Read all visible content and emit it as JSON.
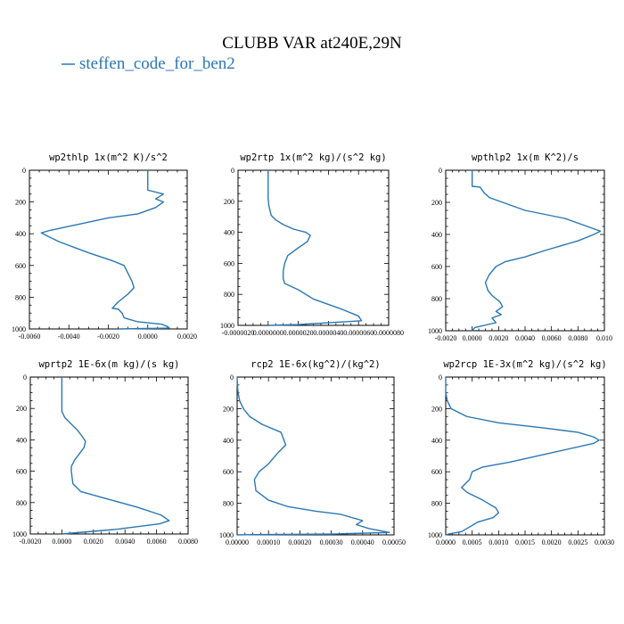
{
  "figure": {
    "title": "CLUBB VAR at240E,29N",
    "legend_label": "steffen_code_for_ben2",
    "line_color": "#2a77b4"
  },
  "chart_data": [
    {
      "type": "line",
      "title": "wp2thlp  1x(m^2 K)/s^2",
      "xlim": [
        -0.006,
        0.002
      ],
      "ylim": [
        0,
        1000
      ],
      "y_inverted": true,
      "xticks": [
        "-0.0060",
        "-0.0040",
        "-0.0020",
        "0.0000",
        "0.0020"
      ],
      "yticks": [
        "0",
        "200",
        "400",
        "600",
        "800",
        "1000"
      ],
      "series": [
        {
          "x": [
            0.0,
            0.0,
            0.0,
            0.0,
            0.0008,
            0.0004,
            0.0008,
            0.0004,
            -0.0005,
            -0.002,
            -0.0035,
            -0.005,
            -0.0054,
            -0.005,
            -0.0045,
            -0.003,
            -0.0018,
            -0.0012,
            -0.001,
            -0.0008,
            -0.0007,
            -0.001,
            -0.0015,
            -0.0018,
            -0.0015,
            -0.0013,
            -0.0012,
            -0.0005,
            0.0007,
            0.001,
            0.0011,
            -0.0015
          ],
          "y": [
            0,
            50,
            100,
            125,
            150,
            180,
            200,
            235,
            275,
            300,
            340,
            380,
            395,
            420,
            450,
            520,
            570,
            600,
            650,
            700,
            740,
            780,
            830,
            870,
            875,
            900,
            930,
            955,
            970,
            985,
            995,
            1000
          ]
        }
      ]
    },
    {
      "type": "line",
      "title": "wp2rtp  1x(m^2 kg)/(s^2 kg)",
      "xlim": [
        -2e-06,
        8e-06
      ],
      "ylim": [
        0,
        1000
      ],
      "y_inverted": true,
      "xticks": [
        "-0.0000020",
        "0.0000000",
        "0.0000020",
        "0.0000040",
        "0.0000060",
        "0.0000080"
      ],
      "yticks": [
        "0",
        "200",
        "400",
        "600",
        "800",
        "1000"
      ],
      "series": [
        {
          "x": [
            0.0,
            0.0,
            0.0,
            5e-08,
            2e-07,
            5e-07,
            1e-06,
            1.7e-06,
            2.5e-06,
            2.8e-06,
            2.6e-06,
            2e-06,
            1.3e-06,
            1.1e-06,
            1e-06,
            1e-06,
            1.1e-06,
            2e-06,
            3e-06,
            5e-06,
            6e-06,
            6.2e-06,
            2e-06,
            0.0
          ],
          "y": [
            0,
            100,
            180,
            230,
            290,
            320,
            350,
            380,
            400,
            420,
            460,
            500,
            550,
            600,
            650,
            700,
            730,
            770,
            830,
            900,
            940,
            970,
            995,
            1000
          ]
        }
      ]
    },
    {
      "type": "line",
      "title": "wpthlp2  1x(m K^2)/s",
      "xlim": [
        -0.002,
        0.01
      ],
      "ylim": [
        0,
        1000
      ],
      "y_inverted": true,
      "xticks": [
        "-0.0020",
        "0.0000",
        "0.0020",
        "0.0040",
        "0.0060",
        "0.0080",
        "0.010"
      ],
      "yticks": [
        "0",
        "200",
        "400",
        "600",
        "800",
        "1000"
      ],
      "series": [
        {
          "x": [
            0.0,
            0.0,
            0.0,
            0.0006,
            0.0009,
            0.0013,
            0.004,
            0.007,
            0.0087,
            0.0097,
            0.0092,
            0.008,
            0.0055,
            0.004,
            0.0025,
            0.0018,
            0.0013,
            0.001,
            0.0012,
            0.0015,
            0.0018,
            0.0021,
            0.0023,
            0.0018,
            0.0022,
            0.0015,
            0.0018,
            0.0002,
            0.0
          ],
          "y": [
            0,
            50,
            100,
            105,
            140,
            170,
            250,
            300,
            350,
            380,
            400,
            440,
            500,
            540,
            570,
            600,
            650,
            700,
            750,
            780,
            800,
            820,
            850,
            880,
            900,
            920,
            950,
            980,
            1000
          ]
        }
      ]
    },
    {
      "type": "line",
      "title": "wprtp2  1E-6x(m kg)/(s kg)",
      "xlim": [
        -0.002,
        0.008
      ],
      "ylim": [
        0,
        1000
      ],
      "y_inverted": true,
      "xticks": [
        "-0.0020",
        "0.0000",
        "0.0020",
        "0.0040",
        "0.0060",
        "0.0080"
      ],
      "yticks": [
        "0",
        "200",
        "400",
        "600",
        "800",
        "1000"
      ],
      "series": [
        {
          "x": [
            0.0,
            0.0,
            0.0,
            0.0002,
            0.0006,
            0.001,
            0.0013,
            0.0015,
            0.0014,
            0.0008,
            0.0006,
            0.0006,
            0.0007,
            0.0012,
            0.003,
            0.0048,
            0.0063,
            0.0068,
            0.0062,
            0.0035,
            0.0
          ],
          "y": [
            0,
            150,
            220,
            260,
            300,
            340,
            380,
            410,
            450,
            530,
            570,
            600,
            680,
            730,
            780,
            830,
            880,
            915,
            935,
            970,
            1000
          ]
        }
      ]
    },
    {
      "type": "line",
      "title": "rcp2  1E-6x(kg^2)/(kg^2)",
      "xlim": [
        0.0,
        0.0005
      ],
      "ylim": [
        0,
        1000
      ],
      "y_inverted": true,
      "xticks": [
        "0.00000",
        "0.00010",
        "0.00020",
        "0.00030",
        "0.00040",
        "0.00050"
      ],
      "yticks": [
        "0",
        "200",
        "400",
        "600",
        "800",
        "1000"
      ],
      "series": [
        {
          "x": [
            0.0,
            1e-06,
            3e-06,
            8e-06,
            2e-05,
            4e-05,
            8e-05,
            0.00014,
            0.000155,
            0.00013,
            0.0001,
            7e-05,
            5.5e-05,
            6e-05,
            0.0001,
            0.00016,
            0.00025,
            0.00033,
            0.0004,
            0.00038,
            0.00042,
            0.000485,
            0.0003,
            5e-05,
            0.0
          ],
          "y": [
            0,
            50,
            100,
            150,
            200,
            250,
            300,
            350,
            430,
            480,
            550,
            600,
            650,
            720,
            780,
            820,
            850,
            870,
            910,
            935,
            960,
            985,
            995,
            998,
            1000
          ]
        }
      ]
    },
    {
      "type": "line",
      "title": "wp2rcp  1E-3x(m^2 kg)/(s^2 kg)",
      "xlim": [
        0.0,
        0.003
      ],
      "ylim": [
        0,
        1000
      ],
      "y_inverted": true,
      "xticks": [
        "0.0000",
        "0.0005",
        "0.0010",
        "0.0015",
        "0.0020",
        "0.0025",
        "0.0030"
      ],
      "yticks": [
        "0",
        "200",
        "400",
        "600",
        "800",
        "1000"
      ],
      "series": [
        {
          "x": [
            0.0,
            0.0,
            3e-05,
            0.0001,
            0.0004,
            0.001,
            0.0018,
            0.0025,
            0.0028,
            0.0029,
            0.0028,
            0.002,
            0.0012,
            0.0007,
            0.0005,
            0.00045,
            0.0003,
            0.0004,
            0.0007,
            0.00095,
            0.001,
            0.0009,
            0.0006,
            0.0004,
            0.0003,
            5e-05,
            0.0
          ],
          "y": [
            0,
            100,
            150,
            200,
            250,
            290,
            320,
            350,
            380,
            400,
            420,
            480,
            540,
            570,
            600,
            650,
            700,
            730,
            780,
            830,
            860,
            890,
            920,
            960,
            980,
            995,
            1000
          ]
        }
      ]
    }
  ]
}
